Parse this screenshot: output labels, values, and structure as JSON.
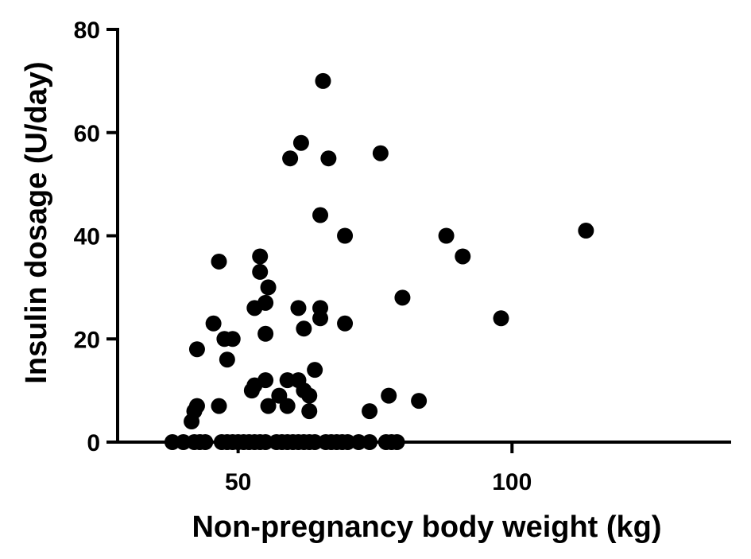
{
  "chart_data": {
    "type": "scatter",
    "title": "",
    "xlabel": "Non-pregnancy body weight (kg)",
    "ylabel": "Insulin dosage (U/day)",
    "xlim": [
      28,
      140
    ],
    "ylim": [
      0,
      80
    ],
    "x_ticks": [
      50,
      100
    ],
    "y_ticks": [
      0,
      20,
      40,
      60,
      80
    ],
    "x_tick_labels": [
      "50",
      "100"
    ],
    "y_tick_labels": [
      "0",
      "20",
      "40",
      "60",
      "80"
    ],
    "grid": false,
    "legend": "none",
    "marker_color": "#000000",
    "series": [
      {
        "points": [
          [
            38,
            0
          ],
          [
            40,
            0
          ],
          [
            42,
            0
          ],
          [
            43,
            0
          ],
          [
            44,
            0
          ],
          [
            47,
            0
          ],
          [
            48,
            0
          ],
          [
            49,
            0
          ],
          [
            50,
            0
          ],
          [
            51,
            0
          ],
          [
            52,
            0
          ],
          [
            53,
            0
          ],
          [
            54,
            0
          ],
          [
            55,
            0
          ],
          [
            57,
            0
          ],
          [
            58,
            0
          ],
          [
            59,
            0
          ],
          [
            60,
            0
          ],
          [
            61,
            0
          ],
          [
            62,
            0
          ],
          [
            63,
            0
          ],
          [
            64,
            0
          ],
          [
            66,
            0
          ],
          [
            67,
            0
          ],
          [
            68,
            0
          ],
          [
            69,
            0
          ],
          [
            70,
            0
          ],
          [
            72,
            0
          ],
          [
            74,
            0
          ],
          [
            77,
            0
          ],
          [
            78,
            0
          ],
          [
            79,
            0
          ],
          [
            65.5,
            70
          ],
          [
            61.5,
            58
          ],
          [
            76,
            56
          ],
          [
            59.5,
            55
          ],
          [
            66.5,
            55
          ],
          [
            65,
            44
          ],
          [
            113.5,
            41
          ],
          [
            69.5,
            40
          ],
          [
            88,
            40
          ],
          [
            91,
            36
          ],
          [
            46.5,
            35
          ],
          [
            54,
            36
          ],
          [
            54,
            33
          ],
          [
            55.5,
            30
          ],
          [
            80,
            28
          ],
          [
            53,
            26
          ],
          [
            55,
            27
          ],
          [
            61,
            26
          ],
          [
            65,
            26
          ],
          [
            65,
            24
          ],
          [
            98,
            24
          ],
          [
            45.5,
            23
          ],
          [
            69.5,
            23
          ],
          [
            62,
            22
          ],
          [
            55,
            21
          ],
          [
            47.5,
            20
          ],
          [
            49,
            20
          ],
          [
            42.5,
            18
          ],
          [
            48,
            16
          ],
          [
            64,
            14
          ],
          [
            55,
            12
          ],
          [
            59,
            12
          ],
          [
            61,
            12
          ],
          [
            53,
            11
          ],
          [
            52.5,
            10
          ],
          [
            62,
            10
          ],
          [
            57.5,
            9
          ],
          [
            63,
            9
          ],
          [
            77.5,
            9
          ],
          [
            83,
            8
          ],
          [
            42.5,
            7
          ],
          [
            46.5,
            7
          ],
          [
            55.5,
            7
          ],
          [
            59,
            7
          ],
          [
            42,
            6
          ],
          [
            63,
            6
          ],
          [
            74,
            6
          ],
          [
            41.5,
            4
          ]
        ]
      }
    ]
  }
}
